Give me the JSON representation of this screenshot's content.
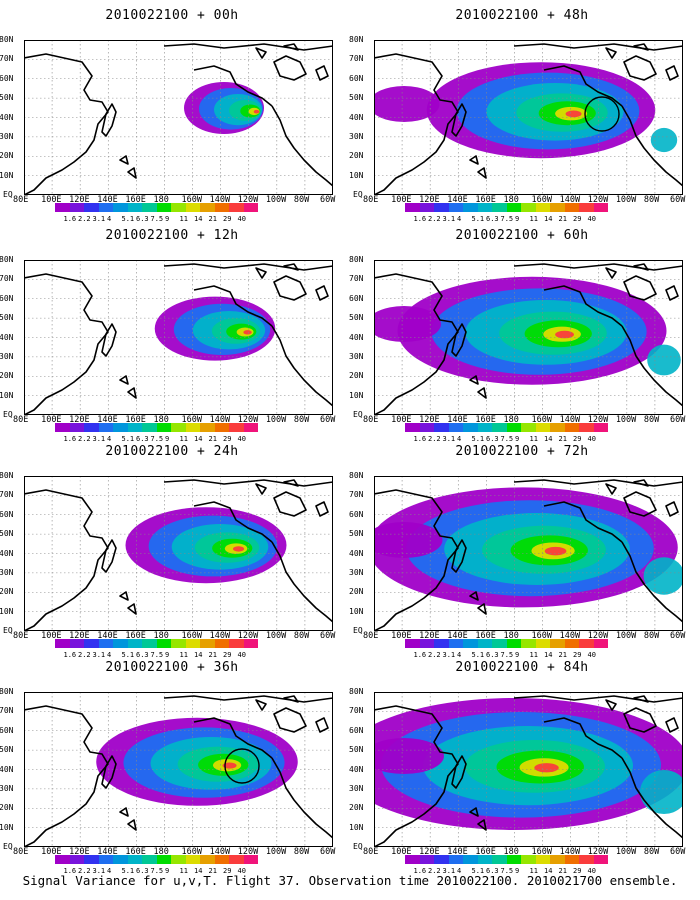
{
  "caption": "Signal Variance for u,v,T. Flight 37. Observation time 2010022100. 2010021700 ensemble.",
  "lat_labels": [
    "80N",
    "70N",
    "60N",
    "50N",
    "40N",
    "30N",
    "20N",
    "10N",
    "EQ"
  ],
  "lon_labels": [
    "80E",
    "100E",
    "120E",
    "140E",
    "160E",
    "180",
    "160W",
    "140W",
    "120W",
    "100W",
    "80W",
    "60W"
  ],
  "colorbar": {
    "labels": [
      "1.6",
      "2.2",
      "3.1",
      "4",
      "5.1",
      "6.3",
      "7.5",
      "9",
      "11",
      "14",
      "21",
      "29",
      "40"
    ],
    "colors": [
      "#a000c8",
      "#7814dc",
      "#3232f0",
      "#1e6ef0",
      "#0096dc",
      "#00b4c8",
      "#00c896",
      "#00dc00",
      "#96e600",
      "#dcdc00",
      "#e6a000",
      "#f06e00",
      "#fa3c3c",
      "#f0147a"
    ]
  },
  "panels": [
    {
      "title": "2010022100 + 00h",
      "extent": 0.0
    },
    {
      "title": "2010022100 + 48h",
      "extent": 0.55
    },
    {
      "title": "2010022100 + 12h",
      "extent": 0.15
    },
    {
      "title": "2010022100 + 60h",
      "extent": 0.7
    },
    {
      "title": "2010022100 + 24h",
      "extent": 0.3
    },
    {
      "title": "2010022100 + 72h",
      "extent": 0.85
    },
    {
      "title": "2010022100 + 36h",
      "extent": 0.45
    },
    {
      "title": "2010022100 + 84h",
      "extent": 1.0
    }
  ]
}
